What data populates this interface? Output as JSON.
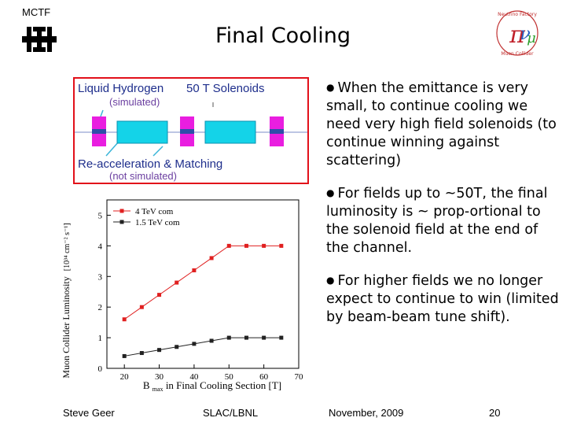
{
  "header": {
    "org_label": "MCTF",
    "title": "Final Cooling",
    "logo_icon": "fermilab-logo-icon",
    "right_logo_icon": "neutrino-factory-logo-icon",
    "right_logo_text_top": "Neutrino Factory",
    "right_logo_text_bottom": "Muon Collider"
  },
  "diagram": {
    "label_liquid_hydrogen": "Liquid Hydrogen",
    "label_simulated": "(simulated)",
    "label_solenoids": "50 T Solenoids",
    "label_reacceleration": "Re-acceleration & Matching",
    "label_not_simulated": "(not simulated)",
    "colors": {
      "border": "#e2101a",
      "solenoid": "#e91ee0",
      "rf": "#14d3e8",
      "absorber": "#2f4ea8",
      "text": "#1e2e8c",
      "subtext": "#6b3fa0"
    }
  },
  "chart_data": {
    "type": "line",
    "xlabel_main": "B",
    "xlabel_sub": "max",
    "xlabel_rest": " in Final Cooling Section [T]",
    "ylabel": "Muon Collider Luminosity",
    "ylabel_unit": "[10³⁴ cm⁻² s⁻¹]",
    "xlim": [
      15,
      70
    ],
    "ylim": [
      0,
      5.5
    ],
    "xticks": [
      20,
      30,
      40,
      50,
      60,
      70
    ],
    "yticks": [
      0,
      1,
      2,
      3,
      4,
      5
    ],
    "legend_position": "top-left",
    "series": [
      {
        "name": "4  TeV com",
        "color": "#e02020",
        "x": [
          20,
          25,
          30,
          35,
          40,
          45,
          50,
          55,
          60,
          65
        ],
        "y": [
          1.6,
          2.0,
          2.4,
          2.8,
          3.2,
          3.6,
          4.0,
          4.0,
          4.0,
          4.0
        ]
      },
      {
        "name": "1.5 TeV com",
        "color": "#222222",
        "x": [
          20,
          25,
          30,
          35,
          40,
          45,
          50,
          55,
          60,
          65
        ],
        "y": [
          0.4,
          0.5,
          0.6,
          0.7,
          0.8,
          0.9,
          1.0,
          1.0,
          1.0,
          1.0
        ]
      }
    ]
  },
  "bullets": [
    {
      "symbol": "●",
      "text": "When the emittance is very small, to continue cooling we need very high field solenoids (to continue winning against scattering)"
    },
    {
      "symbol": "●",
      "text": "For fields up to ~50T, the final luminosity is ~ prop-ortional to the solenoid field at the end of the channel."
    },
    {
      "symbol": "●",
      "text": "For higher fields we no longer expect to continue to win (limited by beam-beam tune shift)."
    }
  ],
  "footer": {
    "author": "Steve Geer",
    "lab": "SLAC/LBNL",
    "date": "November, 2009",
    "page": "20"
  }
}
